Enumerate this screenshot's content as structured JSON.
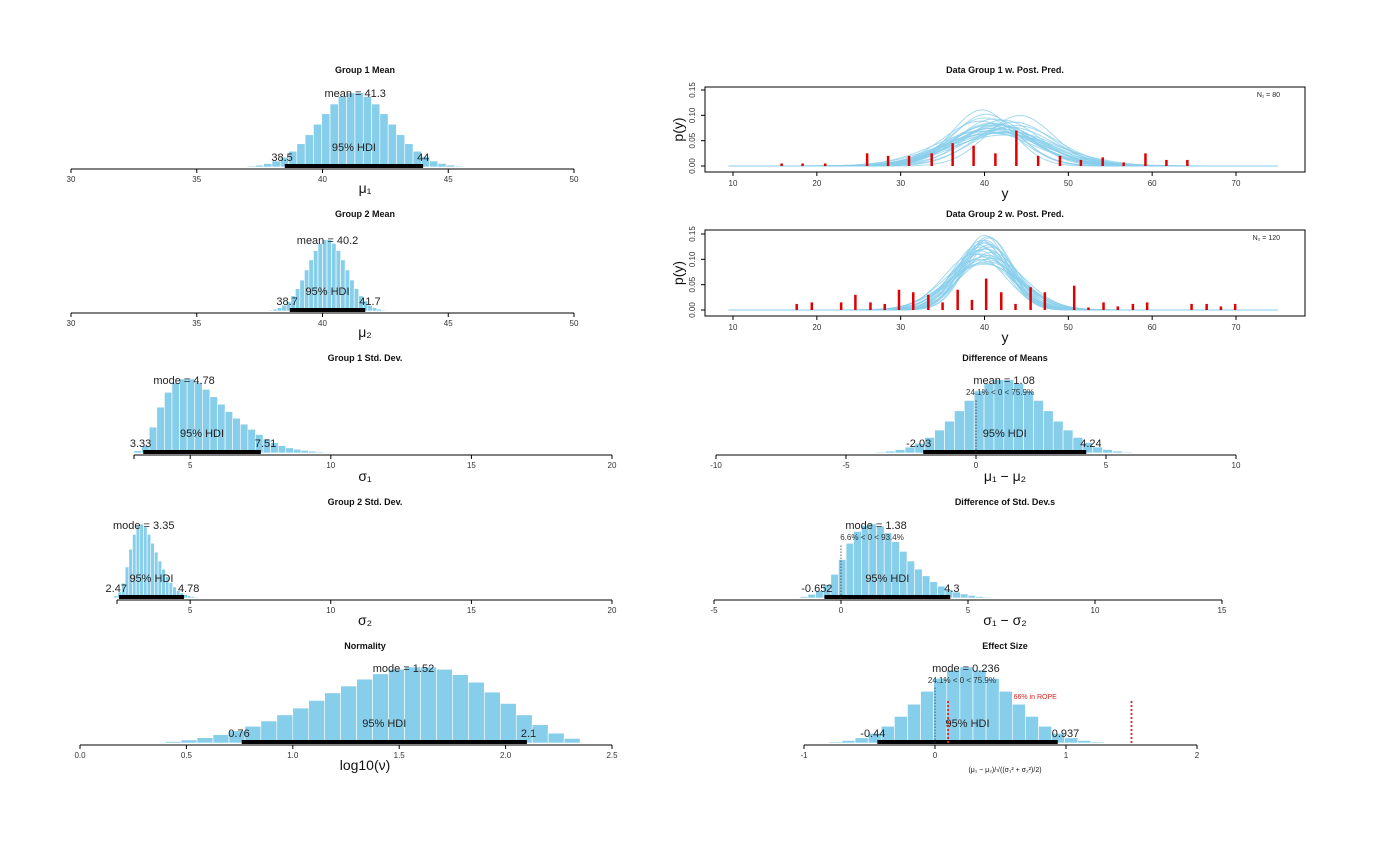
{
  "chart_data": [
    {
      "type": "bar",
      "title": "Group 1 Mean",
      "xlabel": "μ₁",
      "xlim": [
        30,
        50
      ],
      "tick_labels": [
        "30",
        "35",
        "40",
        "45",
        "50"
      ],
      "bin_start": 37.0,
      "bin_width": 0.33,
      "heights": [
        0.013,
        0.025,
        0.046,
        0.08,
        0.13,
        0.21,
        0.31,
        0.43,
        0.57,
        0.71,
        0.84,
        0.94,
        0.99,
        0.99,
        0.94,
        0.84,
        0.71,
        0.57,
        0.43,
        0.31,
        0.21,
        0.14,
        0.08,
        0.047,
        0.026,
        0.013
      ],
      "central": {
        "value": 41.3,
        "text": "mean = 41.3"
      },
      "hdi": {
        "label": "95% HDI",
        "low": 38.5,
        "high": 44,
        "low_text": "38.5",
        "high_text": "44"
      }
    },
    {
      "type": "bar",
      "title": "Group 2 Mean",
      "xlabel": "μ₂",
      "xlim": [
        30,
        50
      ],
      "tick_labels": [
        "30",
        "35",
        "40",
        "45",
        "50"
      ],
      "bin_start": 37.84,
      "bin_width": 0.18,
      "heights": [
        0.013,
        0.025,
        0.046,
        0.08,
        0.13,
        0.21,
        0.31,
        0.43,
        0.57,
        0.71,
        0.84,
        0.94,
        0.99,
        0.99,
        0.94,
        0.84,
        0.71,
        0.57,
        0.43,
        0.31,
        0.21,
        0.14,
        0.08,
        0.047,
        0.026,
        0.013
      ],
      "central": {
        "value": 40.2,
        "text": "mean = 40.2"
      },
      "hdi": {
        "label": "95% HDI",
        "low": 38.7,
        "high": 41.7,
        "low_text": "38.7",
        "high_text": "41.7"
      }
    },
    {
      "type": "bar",
      "title": "Group 1 Std. Dev.",
      "xlabel": "σ₁",
      "xlim": [
        3,
        20
      ],
      "tick_labels": [
        "5",
        "10",
        "15",
        "20"
      ],
      "bin_start": 3.0,
      "bin_width": 0.27,
      "heights": [
        0.03,
        0.1,
        0.35,
        0.62,
        0.82,
        0.95,
        1.0,
        1.0,
        0.95,
        0.86,
        0.76,
        0.66,
        0.56,
        0.47,
        0.39,
        0.32,
        0.25,
        0.19,
        0.14,
        0.1,
        0.07,
        0.05,
        0.035,
        0.025,
        0.015,
        0.01
      ],
      "central": {
        "value": 4.78,
        "text": "mode = 4.78"
      },
      "hdi": {
        "label": "95% HDI",
        "low": 3.33,
        "high": 7.51,
        "low_text": "3.33",
        "high_text": "7.51"
      }
    },
    {
      "type": "bar",
      "title": "Group 2 Std. Dev.",
      "xlabel": "σ₂",
      "xlim": [
        2.4,
        20
      ],
      "tick_labels": [
        "5",
        "10",
        "15",
        "20"
      ],
      "bin_start": 2.3,
      "bin_width": 0.13,
      "heights": [
        0.03,
        0.08,
        0.2,
        0.42,
        0.66,
        0.86,
        0.97,
        1.0,
        0.96,
        0.86,
        0.74,
        0.62,
        0.5,
        0.39,
        0.29,
        0.21,
        0.15,
        0.1,
        0.07,
        0.045,
        0.03,
        0.02,
        0.012,
        0.008
      ],
      "central": {
        "value": 3.35,
        "text": "mode = 3.35"
      },
      "hdi": {
        "label": "95% HDI",
        "low": 2.47,
        "high": 4.78,
        "low_text": "2.47",
        "high_text": "4.78"
      }
    },
    {
      "type": "bar",
      "title": "Normality",
      "xlabel": "log10(ν)",
      "xlim": [
        0,
        2.5
      ],
      "tick_labels": [
        "0.0",
        "0.5",
        "1.0",
        "1.5",
        "2.0",
        "2.5"
      ],
      "bin_start": 0.4,
      "bin_width": 0.075,
      "heights": [
        0.02,
        0.04,
        0.07,
        0.11,
        0.16,
        0.22,
        0.29,
        0.37,
        0.46,
        0.56,
        0.66,
        0.75,
        0.84,
        0.91,
        0.97,
        1.0,
        1.0,
        0.97,
        0.9,
        0.8,
        0.67,
        0.52,
        0.37,
        0.24,
        0.13,
        0.06
      ],
      "central": {
        "value": 1.52,
        "text": "mode = 1.52"
      },
      "hdi": {
        "label": "95% HDI",
        "low": 0.76,
        "high": 2.1,
        "low_text": "0.76",
        "high_text": "2.1"
      }
    },
    {
      "type": "bar",
      "title": "Difference of Means",
      "xlabel": "μ₁ − μ₂",
      "xlim": [
        -10,
        10
      ],
      "tick_labels": [
        "-10",
        "-5",
        "0",
        "5",
        "10"
      ],
      "bin_start": -3.87,
      "bin_width": 0.38,
      "heights": [
        0.013,
        0.025,
        0.046,
        0.08,
        0.13,
        0.21,
        0.31,
        0.43,
        0.57,
        0.71,
        0.84,
        0.94,
        0.99,
        0.99,
        0.94,
        0.84,
        0.71,
        0.57,
        0.43,
        0.31,
        0.21,
        0.14,
        0.08,
        0.047,
        0.026,
        0.013
      ],
      "central": {
        "value": 1.08,
        "text": "mean = 1.08"
      },
      "comparison": {
        "value": 0,
        "text": "24.1% < 0 < 75.9%"
      },
      "hdi": {
        "label": "95% HDI",
        "low": -2.03,
        "high": 4.24,
        "low_text": "-2.03",
        "high_text": "4.24"
      }
    },
    {
      "type": "bar",
      "title": "Difference of Std. Dev.s",
      "xlabel": "σ₁ − σ₂",
      "xlim": [
        -5,
        15
      ],
      "tick_labels": [
        "-5",
        "0",
        "5",
        "10",
        "15"
      ],
      "bin_start": -1.6,
      "bin_width": 0.3,
      "heights": [
        0.02,
        0.05,
        0.1,
        0.18,
        0.32,
        0.52,
        0.74,
        0.9,
        0.98,
        1.0,
        0.97,
        0.88,
        0.76,
        0.63,
        0.5,
        0.39,
        0.3,
        0.22,
        0.16,
        0.11,
        0.08,
        0.055,
        0.035,
        0.02,
        0.012,
        0.006
      ],
      "central": {
        "value": 1.38,
        "text": "mode = 1.38"
      },
      "comparison": {
        "value": 0,
        "text": "6.6% < 0 < 93.4%"
      },
      "hdi": {
        "label": "95% HDI",
        "low": -0.652,
        "high": 4.3,
        "low_text": "-0.652",
        "high_text": "4.3"
      }
    },
    {
      "type": "bar",
      "title": "Effect Size",
      "xlabel": "(μ₁ − μ₂)/√((σ₁² + σ₂²)/2)",
      "xlim": [
        -1,
        2
      ],
      "tick_labels": [
        "-1",
        "0",
        "1",
        "2"
      ],
      "bin_start": -0.81,
      "bin_width": 0.1,
      "heights": [
        0.015,
        0.033,
        0.068,
        0.127,
        0.22,
        0.35,
        0.51,
        0.68,
        0.85,
        0.96,
        1.0,
        0.96,
        0.85,
        0.68,
        0.51,
        0.35,
        0.22,
        0.127,
        0.068,
        0.033,
        0.015
      ],
      "central": {
        "value": 0.236,
        "text": "mode = 0.236"
      },
      "comparison": {
        "value": 0,
        "text": "24.1% < 0 < 75.9%"
      },
      "rope": {
        "limits": [
          0.1,
          1.5
        ],
        "text": "66% in ROPE",
        "color": "#dd2222"
      },
      "hdi": {
        "label": "95% HDI",
        "low": -0.44,
        "high": 0.937,
        "low_text": "-0.44",
        "high_text": "0.937"
      }
    },
    {
      "type": "line",
      "title": "Data Group 1 w. Post. Pred.",
      "xlabel": "y",
      "ylabel": "p(y)",
      "n_label": "N₁ = 80",
      "x_tick_labels": [
        "10",
        "20",
        "30",
        "40",
        "50",
        "60",
        "70"
      ],
      "y_tick_labels": [
        "0.00",
        "0.05",
        "0.10",
        "0.15"
      ],
      "data_bars": [
        [
          15.8,
          0.005
        ],
        [
          18.3,
          0.005
        ],
        [
          21,
          0.005
        ],
        [
          26,
          0.025
        ],
        [
          28.5,
          0.02
        ],
        [
          31,
          0.02
        ],
        [
          33.7,
          0.025
        ],
        [
          36.2,
          0.045
        ],
        [
          38.7,
          0.04
        ],
        [
          41.3,
          0.025
        ],
        [
          43.8,
          0.07
        ],
        [
          46.4,
          0.02
        ],
        [
          49,
          0.02
        ],
        [
          51.5,
          0.012
        ],
        [
          54.1,
          0.017
        ],
        [
          56.6,
          0.007
        ],
        [
          59.2,
          0.025
        ],
        [
          61.7,
          0.012
        ],
        [
          64.2,
          0.012
        ]
      ],
      "curves": [
        [
          40,
          4.2
        ],
        [
          39.7,
          3.6
        ],
        [
          41,
          4.8
        ],
        [
          42,
          5.5
        ],
        [
          44.2,
          4
        ],
        [
          40.5,
          5
        ],
        [
          41.5,
          6
        ],
        [
          43,
          5.2
        ],
        [
          39.5,
          4.5
        ],
        [
          42.5,
          6.5
        ],
        [
          41,
          5.7
        ],
        [
          40.2,
          3.9
        ],
        [
          43.5,
          4.6
        ],
        [
          41.8,
          5
        ],
        [
          40.8,
          6.2
        ],
        [
          42.2,
          4.4
        ],
        [
          41.3,
          5.3
        ],
        [
          39.9,
          5.8
        ],
        [
          42.8,
          5.9
        ],
        [
          41.1,
          4.3
        ],
        [
          40.6,
          5.4
        ],
        [
          43.8,
          5.0
        ],
        [
          41.6,
          4.9
        ],
        [
          42,
          6.1
        ],
        [
          40.9,
          4.7
        ]
      ]
    },
    {
      "type": "line",
      "title": "Data Group 2 w. Post. Pred.",
      "xlabel": "y",
      "ylabel": "p(y)",
      "n_label": "N₂ = 120",
      "x_tick_labels": [
        "10",
        "20",
        "30",
        "40",
        "50",
        "60",
        "70"
      ],
      "y_tick_labels": [
        "0.00",
        "0.05",
        "0.10",
        "0.15"
      ],
      "data_bars": [
        [
          17.6,
          0.012
        ],
        [
          19.4,
          0.015
        ],
        [
          22.9,
          0.015
        ],
        [
          24.6,
          0.03
        ],
        [
          26.4,
          0.015
        ],
        [
          28.1,
          0.012
        ],
        [
          29.8,
          0.04
        ],
        [
          31.5,
          0.035
        ],
        [
          33.3,
          0.03
        ],
        [
          35,
          0.015
        ],
        [
          36.8,
          0.04
        ],
        [
          38.5,
          0.02
        ],
        [
          40.2,
          0.062
        ],
        [
          42,
          0.035
        ],
        [
          43.7,
          0.012
        ],
        [
          45.5,
          0.045
        ],
        [
          47.2,
          0.035
        ],
        [
          50.7,
          0.048
        ],
        [
          52.4,
          0.005
        ],
        [
          54.2,
          0.015
        ],
        [
          55.9,
          0.007
        ],
        [
          57.7,
          0.012
        ],
        [
          59.4,
          0.015
        ],
        [
          64.7,
          0.012
        ],
        [
          66.5,
          0.012
        ],
        [
          68.2,
          0.007
        ],
        [
          69.9,
          0.012
        ]
      ],
      "curves": [
        [
          40,
          2.7
        ],
        [
          39.8,
          3
        ],
        [
          40.2,
          3.3
        ],
        [
          39.5,
          3.6
        ],
        [
          40.5,
          3.1
        ],
        [
          39.2,
          4
        ],
        [
          40.1,
          2.9
        ],
        [
          40.8,
          3.5
        ],
        [
          39.9,
          3.8
        ],
        [
          40.3,
          4.2
        ],
        [
          39.6,
          3.2
        ],
        [
          40.6,
          2.8
        ],
        [
          40,
          4.4
        ],
        [
          39.4,
          3.4
        ],
        [
          40.4,
          3.7
        ],
        [
          39.7,
          2.9
        ],
        [
          40.9,
          3.9
        ],
        [
          38.8,
          3.6
        ],
        [
          40.2,
          3.0
        ],
        [
          39.9,
          3.3
        ],
        [
          40.1,
          4.0
        ],
        [
          39.3,
          3.1
        ],
        [
          40.7,
          3.2
        ],
        [
          39.8,
          4.3
        ],
        [
          40.4,
          2.75
        ]
      ]
    }
  ],
  "colors": {
    "bars": "#87ceeb",
    "hdi": "#000000",
    "data": "#e00000",
    "curves": "#87ceeb",
    "rope": "#dd2222"
  }
}
